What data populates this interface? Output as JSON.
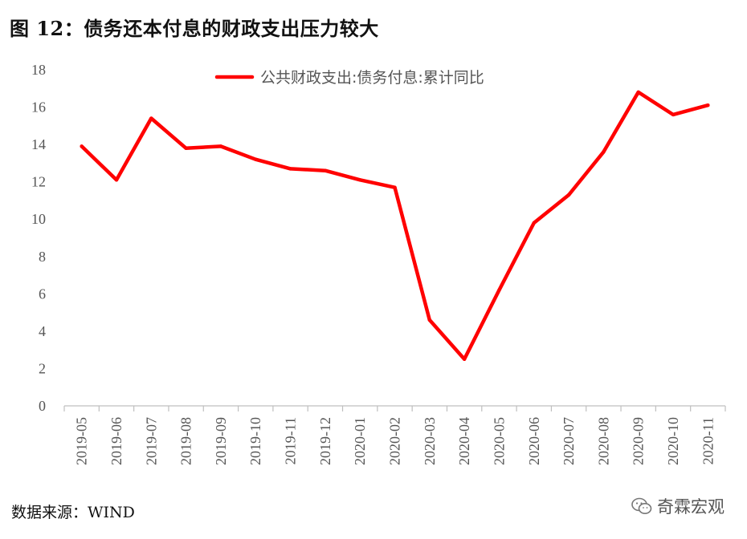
{
  "figure": {
    "title": "图 12：债务还本付息的财政支出压力较大",
    "source": "数据来源：WIND",
    "watermark": "奇霖宏观"
  },
  "chart_data": {
    "type": "line",
    "title": "",
    "xlabel": "",
    "ylabel": "",
    "ylim": [
      0,
      18
    ],
    "yticks": [
      0,
      2,
      4,
      6,
      8,
      10,
      12,
      14,
      16,
      18
    ],
    "grid": false,
    "legend_position": "top-center",
    "categories": [
      "2019-05",
      "2019-06",
      "2019-07",
      "2019-08",
      "2019-09",
      "2019-10",
      "2019-11",
      "2019-12",
      "2020-01",
      "2020-02",
      "2020-03",
      "2020-04",
      "2020-05",
      "2020-06",
      "2020-07",
      "2020-08",
      "2020-09",
      "2020-10",
      "2020-11"
    ],
    "series": [
      {
        "name": "公共财政支出:债务付息:累计同比",
        "color": "#ff0000",
        "values": [
          13.9,
          12.1,
          15.4,
          13.8,
          13.9,
          13.2,
          12.7,
          12.6,
          12.1,
          11.7,
          4.6,
          2.5,
          6.2,
          9.8,
          11.3,
          13.6,
          16.8,
          15.6,
          16.1
        ]
      }
    ]
  }
}
